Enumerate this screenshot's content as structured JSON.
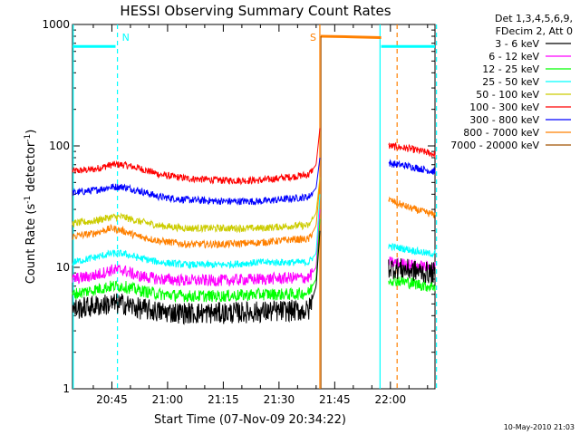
{
  "chart_data": {
    "type": "line",
    "title": "HESSI Observing Summary Count Rates",
    "xlabel": "Start Time (07-Nov-09 20:34:22)",
    "ylabel_main": "Count Rate (s",
    "ylabel_sup1": "-1",
    "ylabel_mid": " detector",
    "ylabel_sup2": "-1",
    "ylabel_end": ")",
    "y_scale": "log",
    "ylim": [
      1,
      1000
    ],
    "xlim_min": [
      34.4,
      132
    ],
    "x_ticks": [
      {
        "m": 45,
        "label": "20:45"
      },
      {
        "m": 60,
        "label": "21:00"
      },
      {
        "m": 75,
        "label": "21:15"
      },
      {
        "m": 90,
        "label": "21:30"
      },
      {
        "m": 105,
        "label": "21:45"
      },
      {
        "m": 120,
        "label": "22:00"
      }
    ],
    "y_ticks": [
      {
        "v": 1,
        "label": "1"
      },
      {
        "v": 10,
        "label": "10"
      },
      {
        "v": 100,
        "label": "100"
      },
      {
        "v": 1000,
        "label": "1000"
      }
    ],
    "legend_header": [
      "Det 1,3,4,5,6,9,",
      "FDecim 2, Att 0"
    ],
    "legend": [
      {
        "label": "3 - 6 keV",
        "color": "#000000"
      },
      {
        "label": "6 - 12 keV",
        "color": "#ff00ff"
      },
      {
        "label": "12 - 25 keV",
        "color": "#00ff00"
      },
      {
        "label": "25 - 50 keV",
        "color": "#00ffff"
      },
      {
        "label": "50 - 100 keV",
        "color": "#cccc00"
      },
      {
        "label": "100 - 300 keV",
        "color": "#ff0000"
      },
      {
        "label": "300 - 800 keV",
        "color": "#0000ff"
      },
      {
        "label": "800 - 7000 keV",
        "color": "#ff8000"
      },
      {
        "label": "7000 - 20000 keV",
        "color": "#a05000"
      }
    ],
    "series": [
      {
        "name": "100 - 300 keV",
        "color": "#ff0000",
        "segments": [
          [
            [
              34.4,
              62
            ],
            [
              40,
              64
            ],
            [
              45,
              70
            ],
            [
              48,
              70
            ],
            [
              52,
              66
            ],
            [
              58,
              58
            ],
            [
              65,
              54
            ],
            [
              75,
              52
            ],
            [
              85,
              52
            ],
            [
              94,
              56
            ],
            [
              98,
              58
            ],
            [
              100,
              70
            ],
            [
              101,
              140
            ]
          ],
          [
            [
              119.5,
              100
            ],
            [
              125,
              95
            ],
            [
              130,
              88
            ],
            [
              132,
              85
            ]
          ]
        ]
      },
      {
        "name": "300 - 800 keV",
        "color": "#0000ff",
        "segments": [
          [
            [
              34.4,
              41
            ],
            [
              40,
              43
            ],
            [
              45,
              46
            ],
            [
              48,
              46
            ],
            [
              52,
              43
            ],
            [
              58,
              38
            ],
            [
              65,
              36
            ],
            [
              75,
              35
            ],
            [
              85,
              35
            ],
            [
              94,
              37
            ],
            [
              98,
              38
            ],
            [
              100,
              45
            ],
            [
              101,
              80
            ]
          ],
          [
            [
              119.5,
              72
            ],
            [
              125,
              68
            ],
            [
              130,
              63
            ],
            [
              132,
              61
            ]
          ]
        ]
      },
      {
        "name": "50 - 100 keV",
        "color": "#cccc00",
        "segments": [
          [
            [
              34.4,
              23
            ],
            [
              40,
              24
            ],
            [
              45,
              26
            ],
            [
              48,
              26
            ],
            [
              52,
              24
            ],
            [
              58,
              22
            ],
            [
              65,
              21
            ],
            [
              75,
              21
            ],
            [
              85,
              21
            ],
            [
              94,
              22
            ],
            [
              98,
              22
            ],
            [
              100,
              28
            ],
            [
              101,
              55
            ]
          ]
        ]
      },
      {
        "name": "800 - 7000 keV",
        "color": "#ff8000",
        "segments": [
          [
            [
              34.4,
              18
            ],
            [
              40,
              19
            ],
            [
              45,
              21
            ],
            [
              48,
              20
            ],
            [
              52,
              18
            ],
            [
              58,
              16.5
            ],
            [
              65,
              15.5
            ],
            [
              75,
              15.5
            ],
            [
              85,
              16
            ],
            [
              94,
              17
            ],
            [
              98,
              17
            ],
            [
              100,
              22
            ],
            [
              101,
              50
            ]
          ],
          [
            [
              119.5,
              36
            ],
            [
              125,
              31
            ],
            [
              130,
              28
            ],
            [
              132,
              27
            ]
          ],
          [
            [
              101.2,
              800
            ],
            [
              110,
              790
            ],
            [
              117.5,
              780
            ]
          ]
        ]
      },
      {
        "name": "25 - 50 keV",
        "color": "#00ffff",
        "segments": [
          [
            [
              34.4,
              11
            ],
            [
              40,
              12
            ],
            [
              45,
              13
            ],
            [
              48,
              13
            ],
            [
              52,
              12
            ],
            [
              58,
              11
            ],
            [
              65,
              10.5
            ],
            [
              75,
              10.5
            ],
            [
              85,
              11
            ],
            [
              94,
              11
            ],
            [
              98,
              11
            ],
            [
              100,
              13
            ],
            [
              101,
              40
            ]
          ],
          [
            [
              119.5,
              15
            ],
            [
              125,
              14
            ],
            [
              130,
              13
            ],
            [
              132,
              13
            ]
          ],
          [
            [
              34.4,
              660
            ],
            [
              46,
              660
            ]
          ],
          [
            [
              117.5,
              660
            ],
            [
              132,
              660
            ]
          ]
        ]
      },
      {
        "name": "6 - 12 keV",
        "color": "#ff00ff",
        "segments": [
          [
            [
              34.4,
              8
            ],
            [
              40,
              8.5
            ],
            [
              45,
              9.5
            ],
            [
              48,
              9.5
            ],
            [
              52,
              8.5
            ],
            [
              58,
              8
            ],
            [
              65,
              7.8
            ],
            [
              75,
              7.8
            ],
            [
              85,
              8
            ],
            [
              94,
              8.2
            ],
            [
              98,
              8.2
            ],
            [
              100,
              10
            ],
            [
              101,
              30
            ]
          ],
          [
            [
              119.5,
              11
            ],
            [
              125,
              10.5
            ],
            [
              130,
              10
            ],
            [
              132,
              10
            ]
          ]
        ]
      },
      {
        "name": "12 - 25 keV",
        "color": "#00ff00",
        "segments": [
          [
            [
              34.4,
              6
            ],
            [
              40,
              6.5
            ],
            [
              45,
              7
            ],
            [
              48,
              7
            ],
            [
              52,
              6.5
            ],
            [
              58,
              6
            ],
            [
              65,
              5.8
            ],
            [
              75,
              5.8
            ],
            [
              85,
              6
            ],
            [
              94,
              6
            ],
            [
              98,
              6.2
            ],
            [
              100,
              8
            ],
            [
              101,
              25
            ]
          ],
          [
            [
              119.5,
              8
            ],
            [
              125,
              7.5
            ],
            [
              130,
              7
            ],
            [
              132,
              7
            ]
          ]
        ]
      },
      {
        "name": "3 - 6 keV",
        "color": "#000000",
        "segments": [
          [
            [
              34.4,
              4.5
            ],
            [
              40,
              4.8
            ],
            [
              45,
              5
            ],
            [
              48,
              5
            ],
            [
              52,
              4.6
            ],
            [
              58,
              4.3
            ],
            [
              65,
              4.2
            ],
            [
              75,
              4.2
            ],
            [
              85,
              4.3
            ],
            [
              94,
              4.4
            ],
            [
              98,
              4.4
            ],
            [
              100,
              7
            ],
            [
              101,
              20
            ]
          ],
          [
            [
              119.5,
              10
            ],
            [
              125,
              9.5
            ],
            [
              130,
              9
            ],
            [
              132,
              9
            ]
          ]
        ]
      },
      {
        "name": "7000 - 20000 keV",
        "color": "#a05000",
        "segments": [
          [
            [
              101.3,
              1
            ],
            [
              101.3,
              800
            ]
          ]
        ]
      }
    ],
    "attenuator_markers": [
      {
        "m": 34.6,
        "style": "solid",
        "color": "#00ffff"
      },
      {
        "m": 46.5,
        "style": "dashed",
        "color": "#00ffff",
        "label": "N"
      },
      {
        "m": 117.2,
        "style": "solid",
        "color": "#00ffff"
      },
      {
        "m": 132.4,
        "style": "dashed",
        "color": "#00ffff"
      },
      {
        "m": 101.0,
        "style": "solid",
        "color": "#ff8000",
        "label": "S"
      },
      {
        "m": 121.8,
        "style": "dashed",
        "color": "#ff8000"
      }
    ],
    "footer": "10-May-2010 21:03"
  }
}
